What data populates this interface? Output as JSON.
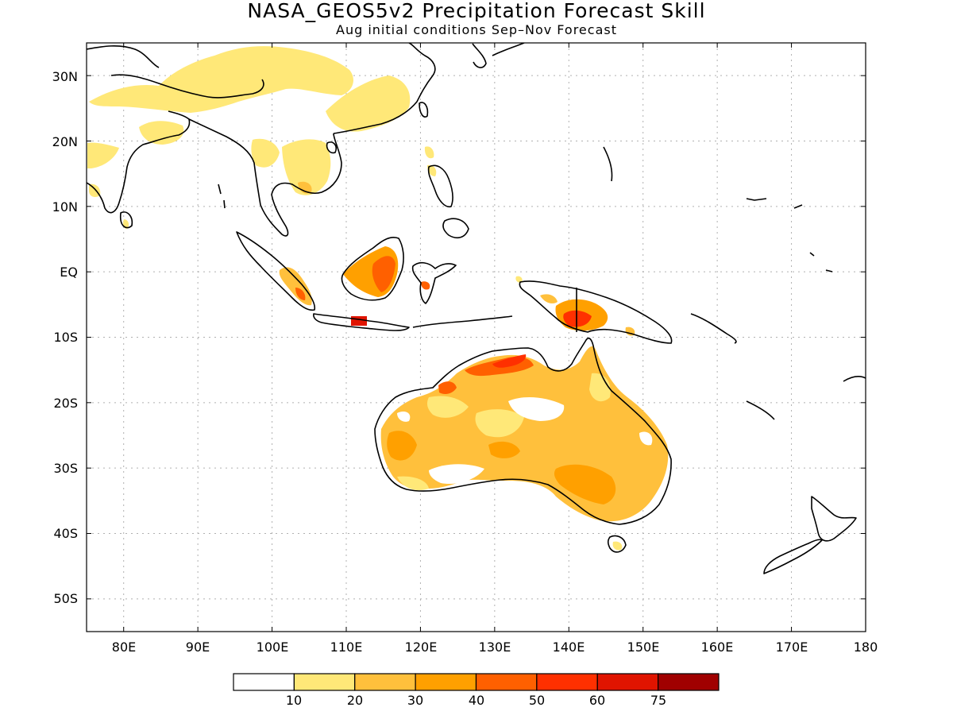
{
  "title": "NASA_GEOS5v2 Precipitation Forecast Skill",
  "subtitle": "Aug initial conditions  Sep–Nov Forecast",
  "lat_labels": [
    "30N",
    "20N",
    "10N",
    "EQ",
    "10S",
    "20S",
    "30S",
    "40S",
    "50S"
  ],
  "lon_labels": [
    "80E",
    "90E",
    "100E",
    "110E",
    "120E",
    "130E",
    "140E",
    "150E",
    "160E",
    "170E",
    "180"
  ],
  "colorbar": {
    "colors": [
      "#ffffff",
      "#ffe878",
      "#ffc03c",
      "#ffa000",
      "#ff6000",
      "#ff3000",
      "#e01400",
      "#a00000"
    ],
    "labels": [
      "10",
      "20",
      "30",
      "40",
      "50",
      "60",
      "75"
    ]
  },
  "map": {
    "lon_range": [
      75,
      180
    ],
    "lat_range": [
      -55,
      35
    ],
    "coastline_color": "#000000",
    "grid": "dotted gray"
  }
}
